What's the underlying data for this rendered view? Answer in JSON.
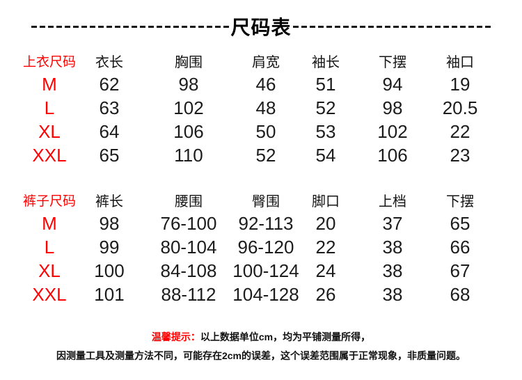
{
  "title": "尺码表",
  "colors": {
    "accent_red": "#ff0000",
    "text_black": "#111111",
    "background": "#ffffff"
  },
  "tables": [
    {
      "header": {
        "label": "上衣尺码",
        "columns": [
          "衣长",
          "胸围",
          "肩宽",
          "袖长",
          "下摆",
          "袖口"
        ]
      },
      "rows": [
        {
          "size": "M",
          "values": [
            "62",
            "98",
            "46",
            "51",
            "94",
            "19"
          ]
        },
        {
          "size": "L",
          "values": [
            "63",
            "102",
            "48",
            "52",
            "98",
            "20.5"
          ]
        },
        {
          "size": "XL",
          "values": [
            "64",
            "106",
            "50",
            "53",
            "102",
            "22"
          ]
        },
        {
          "size": "XXL",
          "values": [
            "65",
            "110",
            "52",
            "54",
            "106",
            "23"
          ]
        }
      ]
    },
    {
      "header": {
        "label": "裤子尺码",
        "columns": [
          "裤长",
          "腰围",
          "臀围",
          "脚口",
          "上档",
          "下摆"
        ]
      },
      "rows": [
        {
          "size": "M",
          "values": [
            "98",
            "76-100",
            "92-113",
            "20",
            "37",
            "65"
          ]
        },
        {
          "size": "L",
          "values": [
            "99",
            "80-104",
            "96-120",
            "22",
            "38",
            "66"
          ]
        },
        {
          "size": "XL",
          "values": [
            "100",
            "84-108",
            "100-124",
            "24",
            "38",
            "67"
          ]
        },
        {
          "size": "XXL",
          "values": [
            "101",
            "88-112",
            "104-128",
            "26",
            "38",
            "68"
          ]
        }
      ]
    }
  ],
  "footer": {
    "tip_label": "温馨提示：",
    "line1": "以上数据单位cm，均为平铺测量所得，",
    "line2": "因测量工具及测量方法不同，可能存在2cm的误差，这个误差范围属于正常现象，非质量问题。"
  }
}
